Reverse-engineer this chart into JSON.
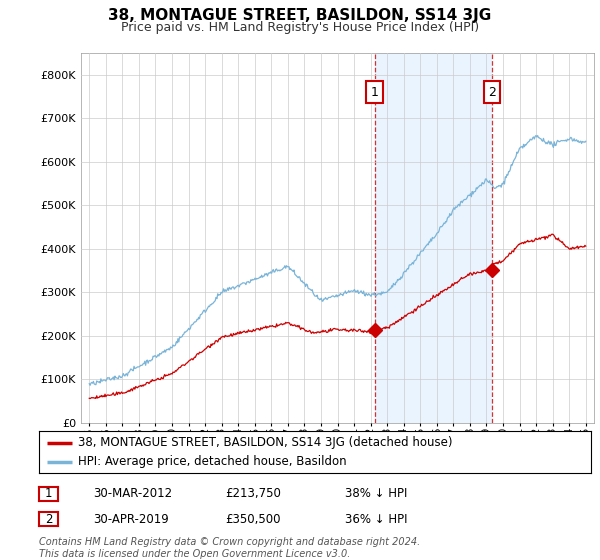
{
  "title": "38, MONTAGUE STREET, BASILDON, SS14 3JG",
  "subtitle": "Price paid vs. HM Land Registry's House Price Index (HPI)",
  "ylim": [
    0,
    850000
  ],
  "yticks": [
    0,
    100000,
    200000,
    300000,
    400000,
    500000,
    600000,
    700000,
    800000
  ],
  "ytick_labels": [
    "£0",
    "£100K",
    "£200K",
    "£300K",
    "£400K",
    "£500K",
    "£600K",
    "£700K",
    "£800K"
  ],
  "hpi_color": "#7ab4d8",
  "property_color": "#cc0000",
  "shade_color": "#ddeeff",
  "marker1_year": 2012.25,
  "marker1_price": 213750,
  "marker2_year": 2019.33,
  "marker2_price": 350500,
  "legend_property": "38, MONTAGUE STREET, BASILDON, SS14 3JG (detached house)",
  "legend_hpi": "HPI: Average price, detached house, Basildon",
  "table_row1": [
    "1",
    "30-MAR-2012",
    "£213,750",
    "38% ↓ HPI"
  ],
  "table_row2": [
    "2",
    "30-APR-2019",
    "£350,500",
    "36% ↓ HPI"
  ],
  "footer": "Contains HM Land Registry data © Crown copyright and database right 2024.\nThis data is licensed under the Open Government Licence v3.0.",
  "background_color": "#ffffff",
  "grid_color": "#cccccc"
}
